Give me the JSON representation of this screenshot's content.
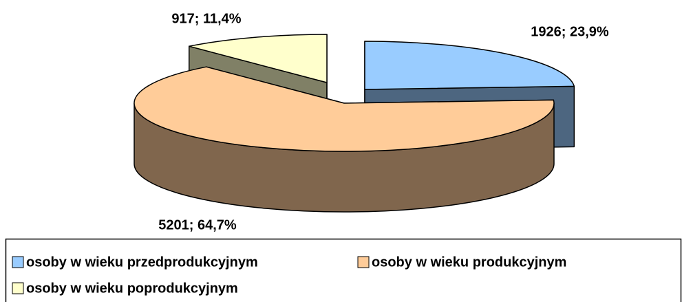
{
  "chart_data": {
    "type": "pie3d",
    "categories": [
      "osoby w wieku przedprodukcyjnym",
      "osoby w wieku produkcyjnym",
      "osoby w wieku poprodukcyjnym"
    ],
    "values": [
      1926,
      5201,
      917
    ],
    "value_labels": [
      "1926; 23,9%",
      "5201; 64,7%",
      "917; 11,4%"
    ],
    "colors": [
      "#99ccff",
      "#ffcc99",
      "#ffffcc"
    ],
    "legend": "bottom"
  }
}
